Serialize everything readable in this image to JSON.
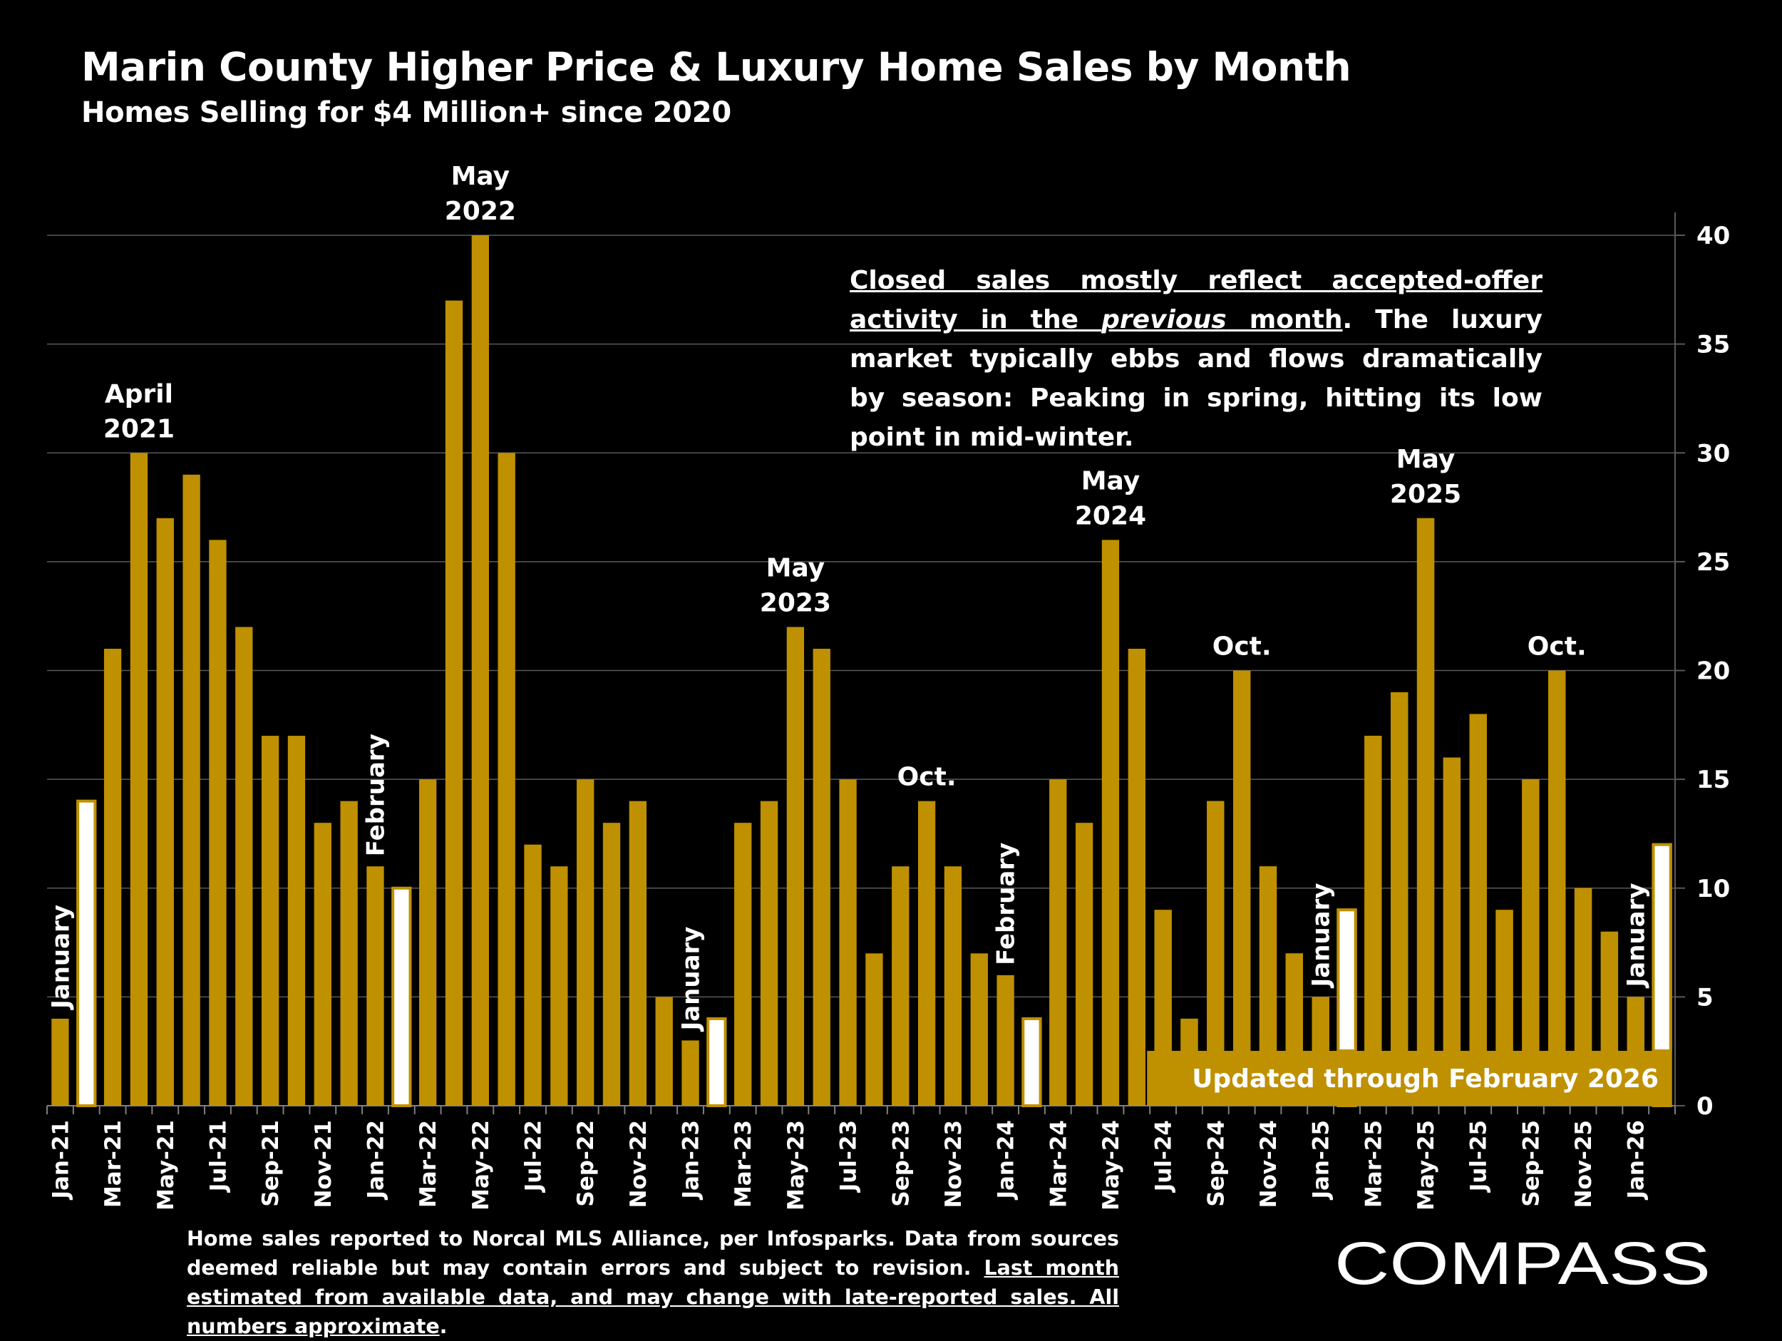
{
  "title": "Marin County Higher Price & Luxury Home Sales by Month",
  "subtitle": "Homes Selling for $4 Million+ since 2020",
  "callout": {
    "part1": "Closed sales mostly reflect accepted-offer activity in the ",
    "part2": "previous",
    "part3": " month",
    "part4": ". The luxury market typically ebbs and flows dramatically by season: Peaking in spring, hitting its low point in mid-winter."
  },
  "footnote": {
    "part1": "Home sales reported to Norcal MLS Alliance, per Infosparks. Data from sources deemed reliable but may contain errors and subject to revision.  ",
    "part2": "Last month estimated from available data, and may change with late-reported sales. All numbers approximate",
    "part3": "."
  },
  "logo": {
    "text": "COMPASS",
    "icon": "compass-circle-icon"
  },
  "colors": {
    "bar": "#bf9000",
    "highlight": "#ffffff",
    "background": "#000000",
    "grid": "#595959"
  },
  "chart_data": {
    "type": "bar",
    "ylim": [
      0,
      40
    ],
    "yticks": [
      "0",
      "5",
      "10",
      "15",
      "20",
      "25",
      "30",
      "35",
      "40"
    ],
    "grid": true,
    "y_axis_side": "right",
    "categories": [
      "Jan-21",
      "Feb-21",
      "Mar-21",
      "Apr-21",
      "May-21",
      "Jun-21",
      "Jul-21",
      "Aug-21",
      "Sep-21",
      "Oct-21",
      "Nov-21",
      "Dec-21",
      "Jan-22",
      "Feb-22",
      "Mar-22",
      "Apr-22",
      "May-22",
      "Jun-22",
      "Jul-22",
      "Aug-22",
      "Sep-22",
      "Oct-22",
      "Nov-22",
      "Dec-22",
      "Jan-23",
      "Feb-23",
      "Mar-23",
      "Apr-23",
      "May-23",
      "Jun-23",
      "Jul-23",
      "Aug-23",
      "Sep-23",
      "Oct-23",
      "Nov-23",
      "Dec-23",
      "Jan-24",
      "Feb-24",
      "Mar-24",
      "Apr-24",
      "May-24",
      "Jun-24",
      "Jul-24",
      "Aug-24",
      "Sep-24",
      "Oct-24",
      "Nov-24",
      "Dec-24",
      "Jan-25",
      "Feb-25",
      "Mar-25",
      "Apr-25",
      "May-25",
      "Jun-25",
      "Jul-25",
      "Aug-25",
      "Sep-25",
      "Oct-25",
      "Nov-25",
      "Dec-25",
      "Jan-26",
      "Feb-26"
    ],
    "xtick_labels_shown": [
      "Jan-21",
      "Mar-21",
      "May-21",
      "Jul-21",
      "Sep-21",
      "Nov-21",
      "Jan-22",
      "Mar-22",
      "May-22",
      "Jul-22",
      "Sep-22",
      "Nov-22",
      "Jan-23",
      "Mar-23",
      "May-23",
      "Jul-23",
      "Sep-23",
      "Nov-23",
      "Jan-24",
      "Mar-24",
      "May-24",
      "Jul-24",
      "Sep-24",
      "Nov-24",
      "Jan-25",
      "Mar-25",
      "May-25",
      "Jul-25",
      "Sep-25",
      "Nov-25",
      "Jan-26"
    ],
    "values": [
      4,
      14,
      21,
      30,
      27,
      29,
      26,
      22,
      17,
      17,
      13,
      14,
      11,
      10,
      15,
      37,
      40,
      30,
      12,
      11,
      15,
      13,
      14,
      5,
      3,
      4,
      13,
      14,
      22,
      21,
      15,
      7,
      11,
      14,
      11,
      7,
      6,
      4,
      15,
      13,
      26,
      21,
      9,
      4,
      14,
      20,
      11,
      7,
      5,
      9,
      17,
      19,
      27,
      16,
      18,
      9,
      15,
      20,
      10,
      8,
      5,
      12
    ],
    "highlighted": [
      "Feb-21",
      "Feb-22",
      "Feb-23",
      "Feb-24",
      "Feb-25",
      "Feb-26"
    ],
    "annotations": [
      {
        "category": "Apr-21",
        "lines": [
          "April",
          "2021"
        ]
      },
      {
        "category": "May-22",
        "lines": [
          "May",
          "2022"
        ]
      },
      {
        "category": "May-23",
        "lines": [
          "May",
          "2023"
        ]
      },
      {
        "category": "Oct-23",
        "lines": [
          "Oct."
        ]
      },
      {
        "category": "May-24",
        "lines": [
          "May",
          "2024"
        ]
      },
      {
        "category": "Oct-24",
        "lines": [
          "Oct."
        ]
      },
      {
        "category": "May-25",
        "lines": [
          "May",
          "2025"
        ]
      },
      {
        "category": "Oct-25",
        "lines": [
          "Oct."
        ]
      }
    ],
    "vertical_annotations": [
      {
        "category": "Jan-21",
        "text": "January"
      },
      {
        "category": "Jan-22",
        "text": "February"
      },
      {
        "category": "Jan-23",
        "text": "January"
      },
      {
        "category": "Jan-24",
        "text": "February"
      },
      {
        "category": "Jan-25",
        "text": "January"
      },
      {
        "category": "Jan-26",
        "text": "January"
      }
    ],
    "banner": "Updated through February 2026"
  }
}
